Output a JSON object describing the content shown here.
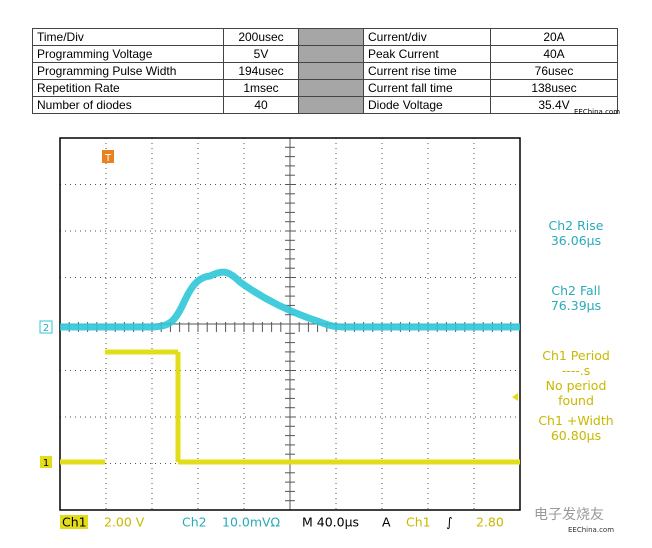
{
  "table": {
    "rows": [
      [
        "Time/Div",
        "200usec",
        "Current/div",
        "20A"
      ],
      [
        "Programming Voltage",
        "5V",
        "Peak Current",
        "40A"
      ],
      [
        "Programming Pulse Width",
        "194usec",
        "Current rise time",
        "76usec"
      ],
      [
        "Repetition Rate",
        "1msec",
        "Current fall time",
        "138usec"
      ],
      [
        "Number of diodes",
        "40",
        "Diode Voltage",
        "35.4V"
      ]
    ]
  },
  "watermark": "EEChina.com",
  "scope": {
    "markers": {
      "trigger": "T",
      "ch2": "2",
      "ch1": "1"
    },
    "measurements": [
      {
        "label": "Ch2 Rise",
        "value": "36.06µs"
      },
      {
        "label": "Ch2 Fall",
        "value": "76.39µs"
      },
      {
        "label": "Ch1 Period",
        "value": "----.s",
        "note": [
          "No period",
          "found"
        ]
      },
      {
        "label": "Ch1 +Width",
        "value": "60.80µs"
      }
    ],
    "status": {
      "ch1": "Ch1",
      "ch1_scale": "2.00 V",
      "ch2": "Ch2",
      "ch2_scale": "10.0mVΩ",
      "timebase": "M 40.0µs",
      "trigger": "A",
      "trigger_source": "Ch1",
      "trigger_level": "2.80"
    },
    "watermark_cn": "电子发烧友",
    "watermark_footer": "EEChina.com"
  }
}
